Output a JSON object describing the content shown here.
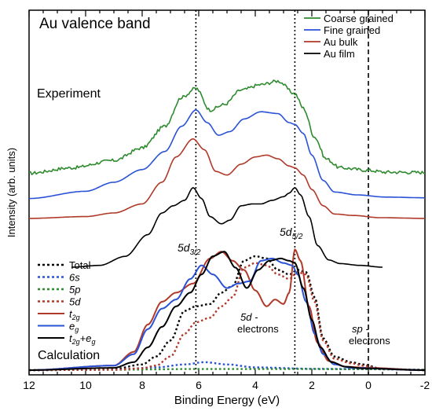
{
  "chart_data": {
    "type": "line",
    "title": "Au valence band",
    "xlabel": "Binding Energy (eV)",
    "ylabel": "Intensity (arb. units)",
    "xlim": [
      12,
      -2
    ],
    "x_reversed": true,
    "xticks": [
      "12",
      "10",
      "8",
      "6",
      "4",
      "2",
      "0",
      "-2"
    ],
    "grid": false,
    "panel_labels": {
      "experiment": "Experiment",
      "calculation": "Calculation"
    },
    "vlines": [
      {
        "x": 6.1,
        "style": "dotted"
      },
      {
        "x": 2.6,
        "style": "dotted"
      },
      {
        "x": 0.0,
        "style": "dashed"
      }
    ],
    "annotations": {
      "d32_base": "5d",
      "d32_sub": "3/2",
      "d52_base": "5d",
      "d52_sub": "5/2",
      "d_electrons_1": "5d -",
      "d_electrons_2": "electrons",
      "sp_electrons_1": "sp -",
      "sp_electrons_2": "electrons"
    },
    "experiment_legend_position": "top-right",
    "calculation_legend_position": "left",
    "experiment_series": [
      {
        "name": "Coarse grained",
        "color": "#2e8b2e",
        "offset": 2.6,
        "noise": 0.09,
        "points": [
          [
            12,
            0.0
          ],
          [
            10.5,
            0.15
          ],
          [
            9,
            0.35
          ],
          [
            8,
            0.7
          ],
          [
            7.2,
            1.3
          ],
          [
            6.6,
            2.1
          ],
          [
            6.1,
            2.35
          ],
          [
            5.6,
            1.75
          ],
          [
            5.1,
            1.9
          ],
          [
            4.5,
            2.3
          ],
          [
            3.8,
            2.45
          ],
          [
            3.2,
            2.55
          ],
          [
            2.6,
            2.2
          ],
          [
            2.3,
            1.8
          ],
          [
            1.9,
            1.0
          ],
          [
            1.5,
            0.4
          ],
          [
            1.0,
            0.15
          ],
          [
            0,
            0.08
          ],
          [
            -0.6,
            0.03
          ],
          [
            -2,
            0.02
          ]
        ]
      },
      {
        "name": "Fine grained",
        "color": "#2a52d6",
        "offset": 1.9,
        "noise": 0,
        "points": [
          [
            12,
            0.0
          ],
          [
            10,
            0.2
          ],
          [
            9,
            0.45
          ],
          [
            8,
            0.8
          ],
          [
            7.2,
            1.3
          ],
          [
            6.6,
            2.0
          ],
          [
            6.1,
            2.45
          ],
          [
            5.7,
            2.1
          ],
          [
            5.3,
            1.75
          ],
          [
            4.9,
            1.85
          ],
          [
            4.4,
            2.2
          ],
          [
            3.8,
            2.4
          ],
          [
            3.2,
            2.35
          ],
          [
            2.8,
            2.1
          ],
          [
            2.6,
            2.05
          ],
          [
            2.3,
            1.8
          ],
          [
            2.0,
            1.2
          ],
          [
            1.6,
            0.5
          ],
          [
            1.2,
            0.18
          ],
          [
            0.4,
            0.1
          ],
          [
            -0.6,
            0.04
          ],
          [
            -2,
            0.02
          ]
        ]
      },
      {
        "name": "Au bulk",
        "color": "#b03a2a",
        "offset": 1.35,
        "noise": 0,
        "points": [
          [
            12,
            0.0
          ],
          [
            10,
            0.05
          ],
          [
            9,
            0.15
          ],
          [
            8,
            0.4
          ],
          [
            7.3,
            1.0
          ],
          [
            6.8,
            1.7
          ],
          [
            6.2,
            2.2
          ],
          [
            5.8,
            1.9
          ],
          [
            5.4,
            1.3
          ],
          [
            5.0,
            1.2
          ],
          [
            4.5,
            1.5
          ],
          [
            4.0,
            1.7
          ],
          [
            3.6,
            1.75
          ],
          [
            3.2,
            1.65
          ],
          [
            2.8,
            1.45
          ],
          [
            2.6,
            1.4
          ],
          [
            2.3,
            1.2
          ],
          [
            2.0,
            0.8
          ],
          [
            1.6,
            0.35
          ],
          [
            1.2,
            0.12
          ],
          [
            0.5,
            0.08
          ],
          [
            -0.4,
            0.02
          ],
          [
            -2,
            0.0
          ]
        ]
      },
      {
        "name": "Au film",
        "color": "#000000",
        "offset": 0.0,
        "noise": 0,
        "points": [
          [
            10.5,
            0.0
          ],
          [
            9.5,
            0.05
          ],
          [
            8.6,
            0.3
          ],
          [
            7.8,
            0.9
          ],
          [
            7.3,
            1.5
          ],
          [
            6.9,
            1.7
          ],
          [
            6.5,
            1.85
          ],
          [
            6.2,
            2.2
          ],
          [
            5.9,
            1.9
          ],
          [
            5.6,
            1.4
          ],
          [
            5.2,
            1.2
          ],
          [
            4.9,
            1.3
          ],
          [
            4.5,
            1.7
          ],
          [
            4.1,
            1.75
          ],
          [
            3.8,
            1.75
          ],
          [
            3.4,
            1.85
          ],
          [
            3.0,
            1.95
          ],
          [
            2.8,
            2.05
          ],
          [
            2.6,
            2.2
          ],
          [
            2.4,
            2.0
          ],
          [
            2.1,
            1.4
          ],
          [
            1.8,
            0.6
          ],
          [
            1.4,
            0.2
          ],
          [
            1.0,
            0.1
          ],
          [
            0.3,
            0.05
          ],
          [
            -0.5,
            0.0
          ]
        ]
      }
    ],
    "calculation_series": [
      {
        "name": "Total",
        "color": "#000000",
        "dash": "dotted",
        "points": [
          [
            12,
            0
          ],
          [
            9,
            0.05
          ],
          [
            8,
            0.25
          ],
          [
            7.5,
            0.6
          ],
          [
            7.0,
            1.3
          ],
          [
            6.5,
            2.6
          ],
          [
            6.1,
            2.8
          ],
          [
            5.6,
            2.9
          ],
          [
            5.2,
            3.4
          ],
          [
            4.8,
            3.7
          ],
          [
            4.4,
            4.8
          ],
          [
            4.0,
            5.0
          ],
          [
            3.6,
            4.9
          ],
          [
            3.2,
            4.4
          ],
          [
            2.8,
            4.2
          ],
          [
            2.5,
            4.4
          ],
          [
            2.2,
            4.3
          ],
          [
            1.9,
            3.2
          ],
          [
            1.6,
            1.4
          ],
          [
            1.2,
            0.6
          ],
          [
            0.6,
            0.35
          ],
          [
            0.2,
            0.25
          ],
          [
            -0.5,
            0.05
          ],
          [
            -2,
            0.0
          ]
        ]
      },
      {
        "name": "6s",
        "color": "#2a52d6",
        "dash": "dotted",
        "points": [
          [
            12,
            0
          ],
          [
            9,
            0.02
          ],
          [
            7.5,
            0.12
          ],
          [
            6.5,
            0.25
          ],
          [
            5.8,
            0.35
          ],
          [
            5.0,
            0.25
          ],
          [
            4.0,
            0.12
          ],
          [
            2.0,
            0.06
          ],
          [
            0.5,
            0.05
          ],
          [
            -2,
            0.02
          ]
        ]
      },
      {
        "name": "5p",
        "color": "#2e8b2e",
        "dash": "dotted",
        "points": [
          [
            12,
            0
          ],
          [
            9,
            0.02
          ],
          [
            6,
            0.05
          ],
          [
            3,
            0.05
          ],
          [
            0,
            0.04
          ],
          [
            -2,
            0.02
          ]
        ]
      },
      {
        "name": "5d",
        "color": "#b03a2a",
        "dash": "dotted",
        "points": [
          [
            12,
            0
          ],
          [
            9,
            0.02
          ],
          [
            8,
            0.08
          ],
          [
            7.5,
            0.2
          ],
          [
            7.0,
            0.6
          ],
          [
            6.5,
            1.6
          ],
          [
            6.1,
            2.1
          ],
          [
            5.6,
            2.3
          ],
          [
            5.2,
            2.8
          ],
          [
            4.8,
            3.2
          ],
          [
            4.4,
            4.5
          ],
          [
            4.0,
            4.7
          ],
          [
            3.6,
            4.6
          ],
          [
            3.2,
            4.2
          ],
          [
            2.8,
            4.0
          ],
          [
            2.5,
            4.3
          ],
          [
            2.2,
            4.2
          ],
          [
            1.9,
            3.0
          ],
          [
            1.6,
            1.3
          ],
          [
            1.2,
            0.5
          ],
          [
            0.6,
            0.3
          ],
          [
            0.2,
            0.2
          ],
          [
            -0.5,
            0.05
          ],
          [
            -2,
            0.0
          ]
        ]
      },
      {
        "name": "t2g",
        "sub": "2g",
        "base": "t",
        "color": "#b03a2a",
        "dash": "solid",
        "points": [
          [
            12,
            0
          ],
          [
            9,
            0.2
          ],
          [
            8.3,
            0.8
          ],
          [
            7.8,
            2.0
          ],
          [
            7.3,
            3.0
          ],
          [
            6.8,
            3.4
          ],
          [
            6.2,
            3.8
          ],
          [
            5.6,
            4.9
          ],
          [
            5.2,
            5.2
          ],
          [
            4.8,
            4.8
          ],
          [
            4.4,
            4.4
          ],
          [
            4.0,
            3.5
          ],
          [
            3.6,
            2.8
          ],
          [
            3.3,
            3.1
          ],
          [
            3.0,
            2.9
          ],
          [
            2.8,
            3.4
          ],
          [
            2.6,
            5.3
          ],
          [
            2.4,
            4.8
          ],
          [
            2.1,
            2.8
          ],
          [
            1.8,
            1.2
          ],
          [
            1.4,
            0.4
          ],
          [
            0.8,
            0.15
          ],
          [
            0,
            0.1
          ],
          [
            -2,
            0.0
          ]
        ]
      },
      {
        "name": "eg",
        "sub": "g",
        "base": "e",
        "color": "#2a52d6",
        "dash": "solid",
        "points": [
          [
            12,
            0
          ],
          [
            9,
            0.2
          ],
          [
            8.3,
            0.7
          ],
          [
            7.8,
            1.8
          ],
          [
            7.3,
            2.7
          ],
          [
            6.8,
            3.1
          ],
          [
            6.3,
            4.0
          ],
          [
            5.9,
            4.6
          ],
          [
            5.5,
            4.2
          ],
          [
            5.0,
            3.6
          ],
          [
            4.6,
            3.8
          ],
          [
            4.2,
            3.9
          ],
          [
            3.8,
            4.8
          ],
          [
            3.4,
            4.9
          ],
          [
            3.0,
            4.7
          ],
          [
            2.7,
            4.6
          ],
          [
            2.5,
            4.2
          ],
          [
            2.2,
            3.0
          ],
          [
            1.9,
            1.6
          ],
          [
            1.6,
            0.7
          ],
          [
            1.2,
            0.25
          ],
          [
            0.6,
            0.1
          ],
          [
            -2,
            0.0
          ]
        ]
      },
      {
        "name": "t2g+eg",
        "sub": "2g",
        "base": "t",
        "tail_base": "+e",
        "tail_sub": "g",
        "color": "#000000",
        "dash": "solid",
        "points": [
          [
            12,
            0
          ],
          [
            9,
            0.1
          ],
          [
            8.3,
            0.35
          ],
          [
            7.8,
            1.0
          ],
          [
            7.3,
            1.9
          ],
          [
            6.8,
            2.8
          ],
          [
            6.3,
            3.4
          ],
          [
            5.9,
            4.2
          ],
          [
            5.5,
            5.0
          ],
          [
            5.1,
            5.2
          ],
          [
            4.7,
            4.5
          ],
          [
            4.3,
            3.6
          ],
          [
            3.9,
            4.4
          ],
          [
            3.5,
            4.8
          ],
          [
            3.1,
            4.9
          ],
          [
            2.8,
            4.8
          ],
          [
            2.6,
            4.7
          ],
          [
            2.3,
            3.6
          ],
          [
            2.0,
            2.2
          ],
          [
            1.7,
            1.0
          ],
          [
            1.3,
            0.35
          ],
          [
            0.8,
            0.15
          ],
          [
            0.2,
            0.08
          ],
          [
            -2,
            0.0
          ]
        ]
      }
    ]
  }
}
